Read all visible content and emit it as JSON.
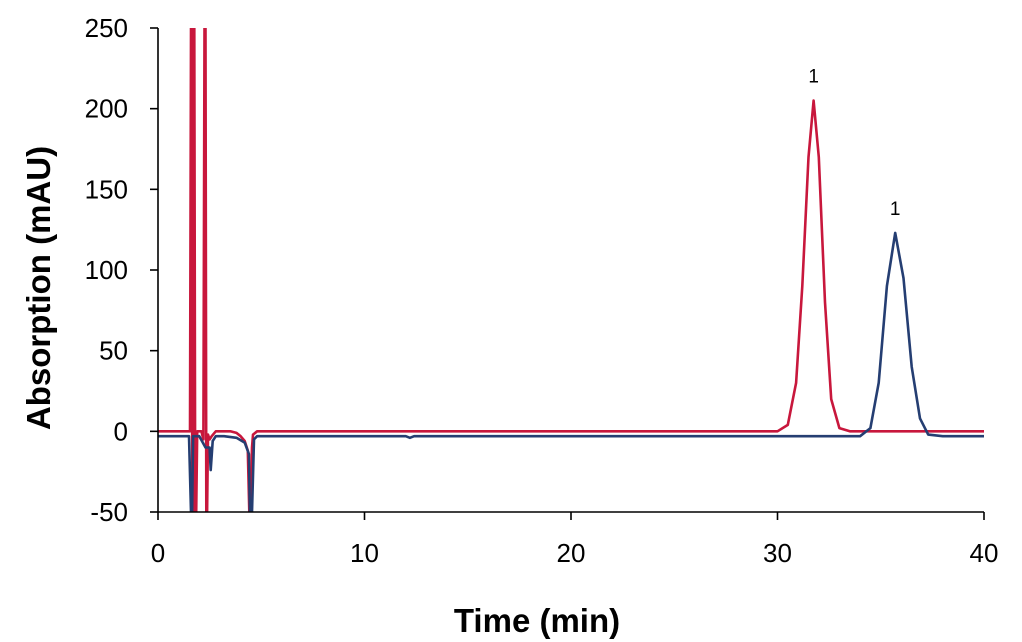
{
  "chart_data": {
    "type": "line",
    "xlabel": "Time (min)",
    "ylabel": "Absorption (mAU)",
    "xlim": [
      0,
      40
    ],
    "ylim": [
      -50,
      250
    ],
    "xticks": [
      0,
      10,
      20,
      30,
      40
    ],
    "yticks": [
      -50,
      0,
      50,
      100,
      150,
      200,
      250
    ],
    "grid": false,
    "series": [
      {
        "color": "#c8173c",
        "x": [
          0,
          1.55,
          1.6,
          1.62,
          1.66,
          1.7,
          1.72,
          1.76,
          1.8,
          1.85,
          1.9,
          2.0,
          2.1,
          2.2,
          2.25,
          2.3,
          2.34,
          2.38,
          2.42,
          2.5,
          2.6,
          2.8,
          3.0,
          3.5,
          3.8,
          4.0,
          4.2,
          4.35,
          4.42,
          4.48,
          4.55,
          4.6,
          4.8,
          5.0,
          10,
          15,
          20,
          25,
          30,
          30.5,
          30.9,
          31.2,
          31.5,
          31.75,
          32.0,
          32.3,
          32.6,
          33.0,
          33.5,
          34,
          36,
          38,
          40
        ],
        "y": [
          0,
          0,
          250,
          250,
          -50,
          -50,
          250,
          250,
          -50,
          -50,
          0,
          0,
          0,
          -5,
          250,
          250,
          -50,
          -50,
          -2,
          -5,
          -3,
          0,
          0,
          0,
          -1,
          -3,
          -6,
          -12,
          -50,
          -50,
          -10,
          -2,
          0,
          0,
          0,
          0,
          0,
          0,
          0,
          4,
          30,
          90,
          170,
          205,
          170,
          80,
          20,
          2,
          0,
          0,
          0,
          0,
          0
        ]
      },
      {
        "color": "#253e72",
        "x": [
          0,
          1.5,
          1.6,
          1.65,
          1.7,
          1.75,
          2.0,
          2.3,
          2.5,
          2.55,
          2.65,
          2.8,
          3.2,
          3.8,
          4.2,
          4.4,
          4.45,
          4.55,
          4.65,
          4.8,
          5.5,
          8,
          10,
          12,
          12.2,
          12.4,
          15,
          20,
          25,
          30,
          33,
          34,
          34.5,
          34.9,
          35.3,
          35.7,
          36.1,
          36.5,
          36.9,
          37.3,
          38,
          40
        ],
        "y": [
          -3,
          -3,
          -50,
          -50,
          -3,
          -3,
          -3,
          -10,
          -10,
          -24,
          -6,
          -3,
          -3,
          -4,
          -7,
          -14,
          -50,
          -50,
          -5,
          -3,
          -3,
          -3,
          -3,
          -3,
          -4,
          -3,
          -3,
          -3,
          -3,
          -3,
          -3,
          -3,
          2,
          30,
          90,
          123,
          95,
          40,
          8,
          -2,
          -3,
          -3
        ]
      }
    ],
    "annotations": [
      {
        "text": "1",
        "x": 31.75,
        "y": 205,
        "color": "#000000"
      },
      {
        "text": "1",
        "x": 35.7,
        "y": 123,
        "color": "#000000"
      }
    ]
  }
}
